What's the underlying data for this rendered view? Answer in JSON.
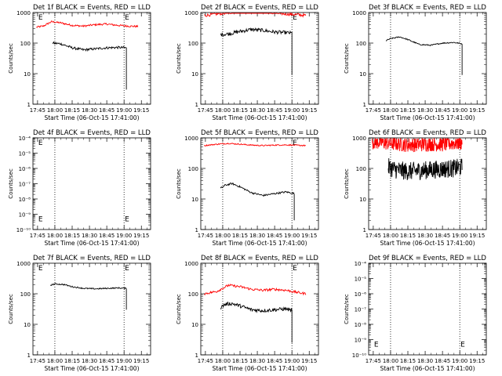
{
  "chart_data": [
    {
      "type": "line",
      "title": "Det 1f BLACK = Events, RED = LLD",
      "xlabel": "Start Time (06-Oct-15 17:41:00)",
      "ylabel": "Counts/sec",
      "scale": "log",
      "ylim": [
        1,
        1000
      ],
      "yticks": [
        "1",
        "10",
        "100",
        "1000"
      ],
      "xticks": [
        "17:45",
        "18:00",
        "18:15",
        "18:30",
        "18:45",
        "19:00",
        "19:15"
      ],
      "markers": [
        "18:00",
        "19:00"
      ],
      "e_label": "E",
      "e_markers": [
        {
          "x": "17:45",
          "y": 1000
        },
        {
          "x": "19:00",
          "y": 1000
        }
      ],
      "series": [
        {
          "name": "LLD",
          "color": "#ff0000",
          "x": [
            "17:44",
            "17:50",
            "17:57",
            "18:05",
            "18:15",
            "18:25",
            "18:35",
            "18:45",
            "18:55",
            "19:04",
            "19:12"
          ],
          "values": [
            330,
            360,
            500,
            460,
            380,
            360,
            400,
            420,
            380,
            360,
            350
          ],
          "noise": 0.03
        },
        {
          "name": "Events",
          "color": "#000000",
          "x": [
            "17:58",
            "18:05",
            "18:15",
            "18:25",
            "18:35",
            "18:45",
            "18:55",
            "19:02"
          ],
          "values": [
            100,
            95,
            70,
            60,
            65,
            70,
            72,
            70
          ],
          "end_drop": [
            {
              "x": "19:02",
              "y": 3
            }
          ],
          "noise": 0.04
        }
      ]
    },
    {
      "type": "line",
      "title": "Det 2f BLACK = Events, RED = LLD",
      "xlabel": "Start Time (06-Oct-15 17:41:00)",
      "ylabel": "Counts/sec",
      "scale": "log",
      "ylim": [
        1,
        1000
      ],
      "yticks": [
        "1",
        "10",
        "100",
        "1000"
      ],
      "xticks": [
        "17:45",
        "18:00",
        "18:15",
        "18:30",
        "18:45",
        "19:00",
        "19:15"
      ],
      "markers": [
        "18:00",
        "19:00"
      ],
      "e_label": "E",
      "e_markers": [
        {
          "x": "19:00",
          "y": 1000
        }
      ],
      "series": [
        {
          "name": "LLD",
          "color": "#ff0000",
          "x": [
            "17:44",
            "17:55",
            "18:05",
            "18:15",
            "18:25",
            "18:35",
            "18:45",
            "18:55",
            "19:05",
            "19:12"
          ],
          "values": [
            800,
            900,
            1000,
            1100,
            1200,
            1100,
            950,
            900,
            850,
            800
          ],
          "noise": 0.05
        },
        {
          "name": "Events",
          "color": "#000000",
          "x": [
            "17:58",
            "18:05",
            "18:15",
            "18:25",
            "18:35",
            "18:45",
            "18:55",
            "19:00"
          ],
          "values": [
            190,
            200,
            240,
            280,
            260,
            230,
            220,
            210
          ],
          "end_drop": [
            {
              "x": "19:00",
              "y": 9
            }
          ],
          "noise": 0.06
        }
      ]
    },
    {
      "type": "line",
      "title": "Det 3f BLACK = Events, RED = LLD",
      "xlabel": "Start Time (06-Oct-15 17:41:00)",
      "ylabel": "Counts/sec",
      "scale": "log",
      "ylim": [
        1,
        1000
      ],
      "yticks": [
        "1",
        "10",
        "100",
        "1000"
      ],
      "xticks": [
        "17:45",
        "18:00",
        "18:15",
        "18:30",
        "18:45",
        "19:00",
        "19:15"
      ],
      "markers": [
        "18:00",
        "19:00"
      ],
      "e_label": "",
      "e_markers": [],
      "series": [
        {
          "name": "Events",
          "color": "#000000",
          "x": [
            "17:56",
            "18:00",
            "18:08",
            "18:15",
            "18:25",
            "18:35",
            "18:45",
            "18:55",
            "19:02"
          ],
          "values": [
            120,
            140,
            160,
            130,
            90,
            85,
            100,
            105,
            95
          ],
          "end_drop": [
            {
              "x": "19:02",
              "y": 9
            }
          ],
          "noise": 0.02
        }
      ]
    },
    {
      "type": "line",
      "title": "Det 4f BLACK = Events, RED = LLD",
      "xlabel": "Start Time (06-Oct-15 17:41:00)",
      "ylabel": "Counts/sec",
      "scale": "log",
      "ylim": [
        1e-10,
        0.0001
      ],
      "yticks": [
        "10⁻¹⁰",
        "10⁻⁹",
        "10⁻⁸",
        "10⁻⁷",
        "10⁻⁶",
        "10⁻⁵",
        "10⁻⁴"
      ],
      "xticks": [
        "17:45",
        "18:00",
        "18:15",
        "18:30",
        "18:45",
        "19:00",
        "19:15"
      ],
      "markers": [
        "18:00",
        "19:00"
      ],
      "e_label": "E",
      "e_markers": [
        {
          "x": "17:45",
          "y": 0.0001
        },
        {
          "x": "17:45",
          "y": 1e-09
        },
        {
          "x": "19:00",
          "y": 1e-09
        }
      ],
      "series": []
    },
    {
      "type": "line",
      "title": "Det 5f BLACK = Events, RED = LLD",
      "xlabel": "Start Time (06-Oct-15 17:41:00)",
      "ylabel": "Counts/sec",
      "scale": "log",
      "ylim": [
        1,
        1000
      ],
      "yticks": [
        "1",
        "10",
        "100",
        "1000"
      ],
      "xticks": [
        "17:45",
        "18:00",
        "18:15",
        "18:30",
        "18:45",
        "19:00",
        "19:15"
      ],
      "markers": [
        "18:00",
        "19:00"
      ],
      "e_label": "E",
      "e_markers": [
        {
          "x": "19:00",
          "y": 1000
        }
      ],
      "series": [
        {
          "name": "LLD",
          "color": "#ff0000",
          "x": [
            "17:44",
            "17:55",
            "18:05",
            "18:15",
            "18:25",
            "18:35",
            "18:45",
            "18:55",
            "19:05",
            "19:12"
          ],
          "values": [
            560,
            620,
            660,
            620,
            580,
            560,
            580,
            590,
            570,
            560
          ],
          "noise": 0.02
        },
        {
          "name": "Events",
          "color": "#000000",
          "x": [
            "17:58",
            "18:02",
            "18:08",
            "18:15",
            "18:25",
            "18:35",
            "18:45",
            "18:55",
            "19:02"
          ],
          "values": [
            22,
            28,
            32,
            25,
            16,
            13,
            15,
            17,
            15
          ],
          "end_drop": [
            {
              "x": "19:02",
              "y": 2
            }
          ],
          "noise": 0.03
        }
      ]
    },
    {
      "type": "line",
      "title": "Det 6f BLACK = Events, RED = LLD",
      "xlabel": "Start Time (06-Oct-15 17:41:00)",
      "ylabel": "Counts/sec",
      "scale": "log",
      "ylim": [
        1,
        1000
      ],
      "yticks": [
        "1",
        "10",
        "100",
        "1000"
      ],
      "xticks": [
        "17:45",
        "18:00",
        "18:15",
        "18:30",
        "18:45",
        "19:00",
        "19:15"
      ],
      "markers": [
        "18:00",
        "19:00"
      ],
      "e_label": "E",
      "e_markers": [
        {
          "x": "17:45",
          "y": 1000
        }
      ],
      "series": [
        {
          "name": "LLD",
          "color": "#ff0000",
          "x": [
            "17:44",
            "17:55",
            "18:05",
            "18:15",
            "18:25",
            "18:35",
            "18:45",
            "18:55",
            "19:02"
          ],
          "values": [
            750,
            700,
            650,
            600,
            620,
            640,
            620,
            680,
            700
          ],
          "noise": 0.25,
          "clip_top": true
        },
        {
          "name": "Events",
          "color": "#000000",
          "x": [
            "17:58",
            "18:05",
            "18:15",
            "18:25",
            "18:35",
            "18:45",
            "18:55",
            "19:02"
          ],
          "values": [
            110,
            90,
            80,
            85,
            90,
            95,
            100,
            110
          ],
          "noise": 0.3
        }
      ]
    },
    {
      "type": "line",
      "title": "Det 7f BLACK = Events, RED = LLD",
      "xlabel": "Start Time (06-Oct-15 17:41:00)",
      "ylabel": "Counts/sec",
      "scale": "log",
      "ylim": [
        1,
        1000
      ],
      "yticks": [
        "1",
        "10",
        "100",
        "1000"
      ],
      "xticks": [
        "17:45",
        "18:00",
        "18:15",
        "18:30",
        "18:45",
        "19:00",
        "19:15"
      ],
      "markers": [
        "18:00",
        "19:00"
      ],
      "e_label": "E",
      "e_markers": [
        {
          "x": "17:45",
          "y": 1000
        },
        {
          "x": "19:00",
          "y": 1000
        }
      ],
      "series": [
        {
          "name": "Events",
          "color": "#000000",
          "x": [
            "17:56",
            "18:00",
            "18:08",
            "18:15",
            "18:25",
            "18:35",
            "18:45",
            "18:55",
            "19:02"
          ],
          "values": [
            190,
            210,
            200,
            170,
            150,
            145,
            150,
            155,
            150
          ],
          "end_drop": [
            {
              "x": "19:02",
              "y": 30
            }
          ],
          "noise": 0.02
        }
      ]
    },
    {
      "type": "line",
      "title": "Det 8f BLACK = Events, RED = LLD",
      "xlabel": "Start Time (06-Oct-15 17:41:00)",
      "ylabel": "Counts/sec",
      "scale": "log",
      "ylim": [
        1,
        1000
      ],
      "yticks": [
        "1",
        "10",
        "100",
        "1000"
      ],
      "xticks": [
        "17:45",
        "18:00",
        "18:15",
        "18:30",
        "18:45",
        "19:00",
        "19:15"
      ],
      "markers": [
        "18:00",
        "19:00"
      ],
      "e_label": "E",
      "e_markers": [
        {
          "x": "19:00",
          "y": 1000
        }
      ],
      "series": [
        {
          "name": "LLD",
          "color": "#ff0000",
          "x": [
            "17:44",
            "17:55",
            "18:05",
            "18:15",
            "18:25",
            "18:35",
            "18:45",
            "18:55",
            "19:05",
            "19:12"
          ],
          "values": [
            100,
            120,
            190,
            170,
            140,
            130,
            140,
            130,
            110,
            100
          ],
          "noise": 0.04
        },
        {
          "name": "Events",
          "color": "#000000",
          "x": [
            "17:58",
            "18:02",
            "18:08",
            "18:15",
            "18:25",
            "18:35",
            "18:45",
            "18:55",
            "19:00"
          ],
          "values": [
            35,
            45,
            48,
            40,
            30,
            28,
            30,
            32,
            28
          ],
          "end_drop": [
            {
              "x": "19:00",
              "y": 2.5
            }
          ],
          "noise": 0.06
        }
      ]
    },
    {
      "type": "line",
      "title": "Det 9f BLACK = Events, RED = LLD",
      "xlabel": "Start Time (06-Oct-15 17:41:00)",
      "ylabel": "Counts/sec",
      "scale": "log",
      "ylim": [
        1e-10,
        0.0001
      ],
      "yticks": [
        "10⁻¹⁰",
        "10⁻⁹",
        "10⁻⁸",
        "10⁻⁷",
        "10⁻⁶",
        "10⁻⁵",
        "10⁻⁴"
      ],
      "xticks": [
        "17:45",
        "18:00",
        "18:15",
        "18:30",
        "18:45",
        "19:00",
        "19:15"
      ],
      "markers": [
        "18:00",
        "19:00"
      ],
      "e_label": "E",
      "e_markers": [
        {
          "x": "17:45",
          "y": 1e-09
        },
        {
          "x": "19:00",
          "y": 1e-09
        }
      ],
      "series": []
    }
  ]
}
